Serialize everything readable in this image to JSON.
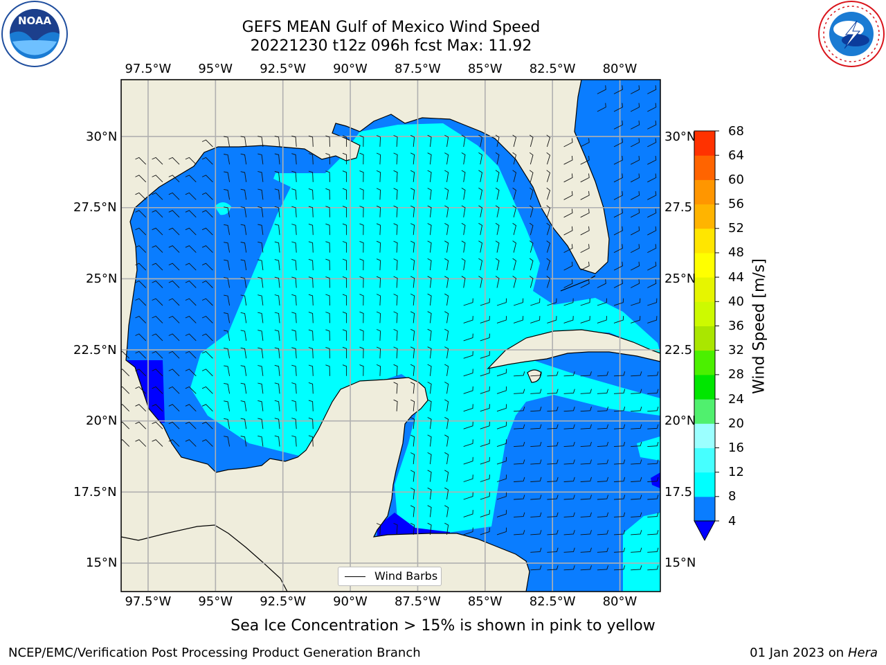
{
  "header": {
    "title_line1": "GEFS MEAN Gulf of Mexico Wind Speed",
    "title_line2": "20221230 t12z 096h fcst   Max: 11.92"
  },
  "logos": {
    "left": "noara-logo",
    "left_text": "NOAA",
    "left_ring_text": "NATIONAL OCEANIC AND ATMOSPHERIC ADMINISTRATION · U.S. DEPARTMENT OF COMMERCE",
    "right": "nws-logo",
    "right_ring_text": "NATIONAL WEATHER SERVICE"
  },
  "map": {
    "lon_range": [
      -98.5,
      -78.5
    ],
    "lat_range": [
      14,
      32
    ],
    "lon_ticks": [
      "97.5°W",
      "95°W",
      "92.5°W",
      "90°W",
      "87.5°W",
      "85°W",
      "82.5°W",
      "80°W"
    ],
    "lat_ticks": [
      "30°N",
      "27.5°N",
      "25°N",
      "22.5°N",
      "20°N",
      "17.5°N",
      "15°N"
    ],
    "lat_ticks_right": [
      "30°N",
      "27.5",
      "25°N",
      "22.5",
      "20°N",
      "17.5",
      "15°N"
    ],
    "grid": true,
    "legend_label": "Wind Barbs",
    "land_color": "#efeddc",
    "sea_low_color": "#0a7dff",
    "sea_mid_color": "#00ffff",
    "sea_min_color": "#0000ff"
  },
  "colorbar": {
    "label": "Wind Speed [m/s]",
    "ticks": [
      "4",
      "8",
      "12",
      "16",
      "20",
      "24",
      "28",
      "32",
      "36",
      "40",
      "44",
      "48",
      "52",
      "56",
      "60",
      "64",
      "68"
    ],
    "colors": [
      "#0a7dff",
      "#00ffff",
      "#46ffff",
      "#9bffff",
      "#50f06e",
      "#00e600",
      "#4bf000",
      "#aae600",
      "#cdfa00",
      "#e6f500",
      "#ffff00",
      "#ffe600",
      "#ffb400",
      "#ff9600",
      "#ff6400",
      "#ff3200"
    ],
    "under_color": "#0000ff"
  },
  "footer": {
    "note": "Sea Ice Concentration > 15% is shown in pink to yellow",
    "credit": "NCEP/EMC/Verification Post Processing Product Generation Branch",
    "date": "01 Jan 2023 on ",
    "machine": "Hera"
  }
}
